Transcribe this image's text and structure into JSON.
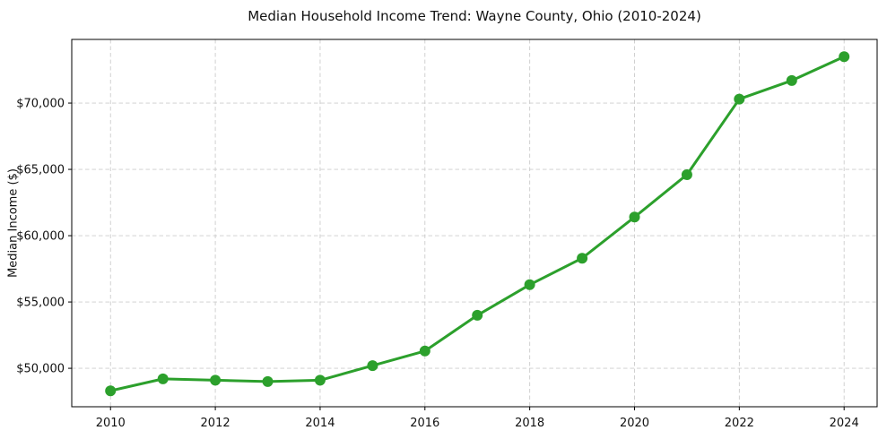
{
  "chart_data": {
    "type": "line",
    "title": "Median Household Income Trend: Wayne County, Ohio (2010-2024)",
    "xlabel": "",
    "ylabel": "Median Income ($)",
    "x": [
      2010,
      2011,
      2012,
      2013,
      2014,
      2015,
      2016,
      2017,
      2018,
      2019,
      2020,
      2021,
      2022,
      2023,
      2024
    ],
    "values": [
      48300,
      49200,
      49100,
      49000,
      49100,
      50200,
      51300,
      54000,
      56300,
      58300,
      61400,
      64600,
      70300,
      71700,
      73500
    ],
    "series_name": "Median Household Income",
    "line_color": "#2ca02c",
    "marker": "circle",
    "marker_color": "#2ca02c",
    "xlim": [
      2009.26,
      2024.63
    ],
    "ylim": [
      47100,
      74800
    ],
    "xticks": {
      "values": [
        2010,
        2012,
        2014,
        2016,
        2018,
        2020,
        2022,
        2024
      ],
      "labels": [
        "2010",
        "2012",
        "2014",
        "2016",
        "2018",
        "2020",
        "2022",
        "2024"
      ]
    },
    "yticks": {
      "values": [
        50000,
        55000,
        60000,
        65000,
        70000
      ],
      "labels": [
        "$50,000",
        "$55,000",
        "$60,000",
        "$65,000",
        "$70,000"
      ]
    },
    "grid": true,
    "grid_color": "#cccccc",
    "frame_color": "#000000",
    "legend": "none"
  }
}
